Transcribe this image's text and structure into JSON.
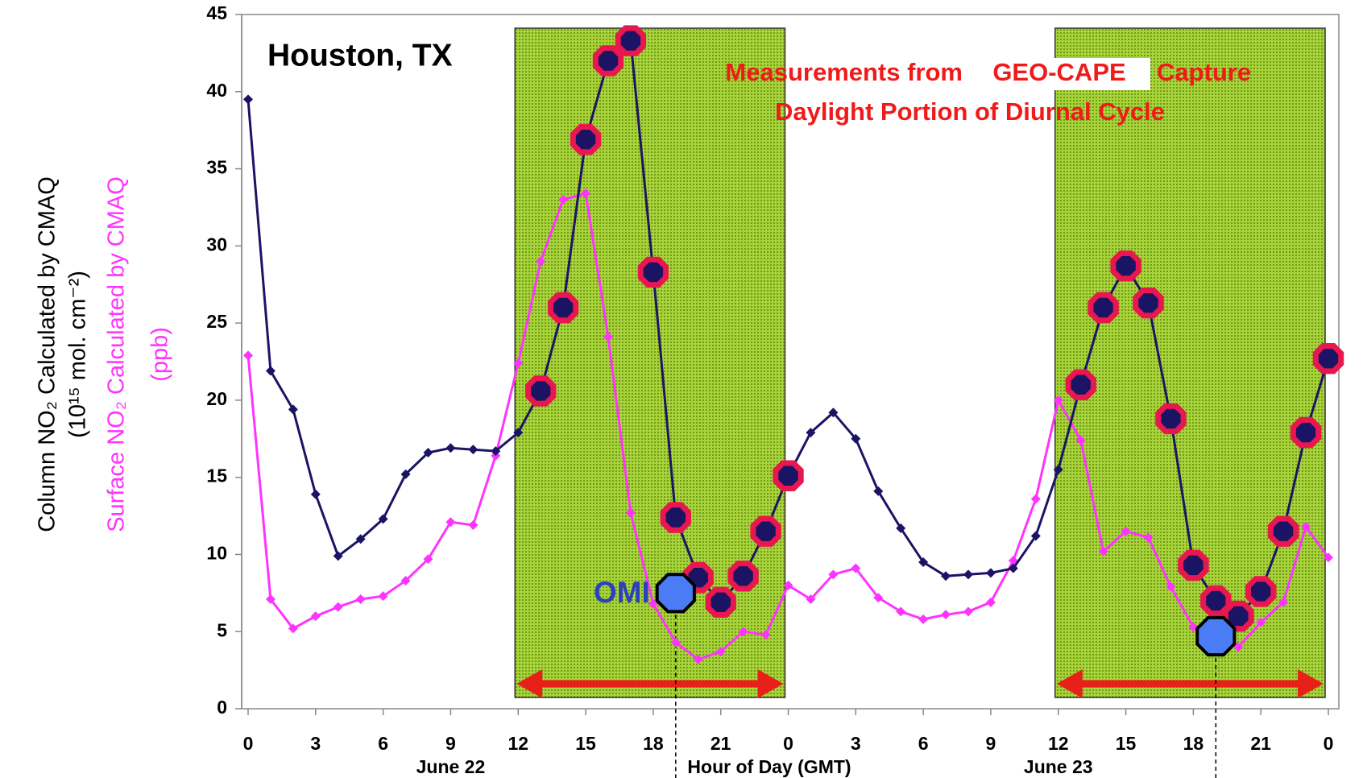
{
  "chart_data": {
    "type": "line",
    "annotations": {
      "location": "Houston, TX",
      "line1_start": "Measurements from",
      "highlight": "GEO-CAPE",
      "line1_end": "Capture",
      "line2": "Daylight Portion of Diurnal Cycle"
    },
    "y_label": {
      "line1": "Column NO₂ Calculated by CMAQ",
      "line2": "(10¹⁵ mol. cm⁻²)"
    },
    "y_label_2": {
      "line1": "Surface NO₂ Calculated by CMAQ",
      "line2": "(ppb)"
    },
    "x_label": "Hour of Day (GMT)",
    "date_labels": [
      "June 22",
      "June 23"
    ],
    "x": [
      0,
      1,
      2,
      3,
      4,
      5,
      6,
      7,
      8,
      9,
      10,
      11,
      12,
      13,
      14,
      15,
      16,
      17,
      18,
      19,
      20,
      21,
      22,
      23,
      24,
      25,
      26,
      27,
      28,
      29,
      30,
      31,
      32,
      33,
      34,
      35,
      36,
      37,
      38,
      39,
      40,
      41,
      42,
      43,
      44,
      45,
      46,
      47,
      48
    ],
    "series": [
      {
        "name": "Column NO₂",
        "color": "#1b1464",
        "values": [
          39.5,
          21.9,
          19.4,
          13.9,
          9.9,
          11.0,
          12.3,
          15.2,
          16.6,
          16.9,
          16.8,
          16.7,
          17.9,
          20.6,
          26.0,
          36.9,
          42.0,
          43.3,
          28.3,
          12.4,
          8.5,
          6.9,
          8.6,
          11.5,
          15.1,
          17.9,
          19.2,
          17.5,
          14.1,
          11.7,
          9.5,
          8.6,
          8.7,
          8.8,
          9.1,
          11.2,
          15.5,
          21.0,
          26.0,
          28.7,
          26.3,
          18.8,
          9.3,
          7.0,
          6.0,
          7.6,
          11.5,
          17.9,
          22.7
        ]
      },
      {
        "name": "Surface NO₂",
        "color": "#ff33ff",
        "values": [
          22.9,
          7.1,
          5.2,
          6.0,
          6.6,
          7.1,
          7.3,
          8.3,
          9.7,
          12.1,
          11.9,
          16.4,
          22.4,
          29.0,
          33.0,
          33.4,
          24.1,
          12.7,
          6.8,
          4.3,
          3.2,
          3.7,
          5.0,
          4.8,
          8.0,
          7.1,
          8.7,
          9.1,
          7.2,
          6.3,
          5.8,
          6.1,
          6.3,
          6.9,
          9.6,
          13.6,
          20.0,
          17.4,
          10.2,
          11.5,
          11.1,
          7.9,
          5.3,
          5.5,
          4.0,
          5.6,
          6.9,
          11.8,
          9.8
        ]
      },
      {
        "name": "OMI",
        "color": "#4a7cf5",
        "x": [
          19,
          43
        ],
        "values": [
          7.5,
          4.7
        ]
      }
    ],
    "shaded_regions": [
      [
        12,
        24
      ],
      [
        36,
        48
      ]
    ],
    "xlim": [
      0,
      48
    ],
    "xticks": [
      0,
      3,
      6,
      9,
      12,
      15,
      18,
      21,
      {
        "value": 24,
        "label": "0"
      },
      {
        "value": 27,
        "label": "3"
      },
      {
        "value": 30,
        "label": "6"
      },
      {
        "value": 33,
        "label": "9"
      },
      {
        "value": 36,
        "label": "12"
      },
      {
        "value": 39,
        "label": "15"
      },
      {
        "value": 42,
        "label": "18"
      },
      {
        "value": 45,
        "label": "21"
      },
      {
        "value": 48,
        "label": "0"
      }
    ],
    "ylim": [
      0,
      45
    ],
    "yticks": [
      0,
      5,
      10,
      15,
      20,
      25,
      30,
      35,
      40,
      45
    ]
  }
}
